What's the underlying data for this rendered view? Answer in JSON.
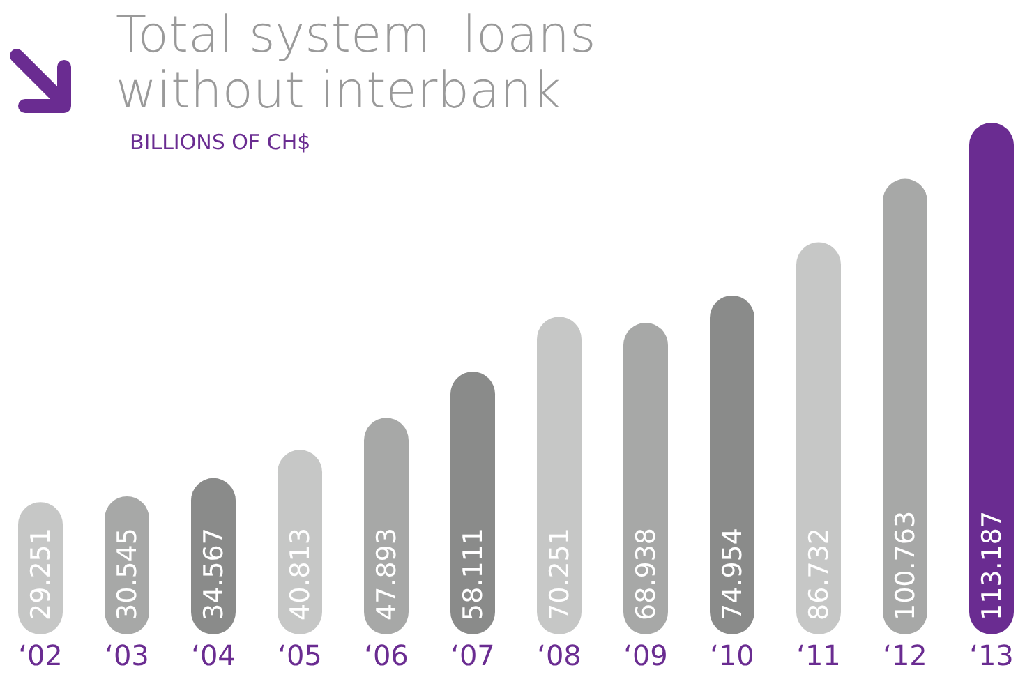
{
  "chart_data": {
    "type": "bar",
    "title": "Total system  loans without interbank",
    "subtitle": "BILLIONS OF CH$",
    "categories": [
      "‘02",
      "‘03",
      "‘04",
      "‘05",
      "‘06",
      "‘07",
      "‘08",
      "‘09",
      "‘10",
      "‘11",
      "‘12",
      "‘13"
    ],
    "values": [
      29.251,
      30.545,
      34.567,
      40.813,
      47.893,
      58.111,
      70.251,
      68.938,
      74.954,
      86.732,
      100.763,
      113.187
    ],
    "colors": [
      "#c6c7c6",
      "#a7a8a7",
      "#8a8b8a",
      "#c6c7c6",
      "#a7a8a7",
      "#8a8b8a",
      "#c6c7c6",
      "#a7a8a7",
      "#8a8b8a",
      "#c6c7c6",
      "#a7a8a7",
      "#6a2c91"
    ],
    "value_labels": [
      "29.251",
      "30.545",
      "34.567",
      "40.813",
      "47.893",
      "58.111",
      "70.251",
      "68.938",
      "74.954",
      "86.732",
      "100.763",
      "113.187"
    ],
    "grid": false,
    "legend": false
  }
}
